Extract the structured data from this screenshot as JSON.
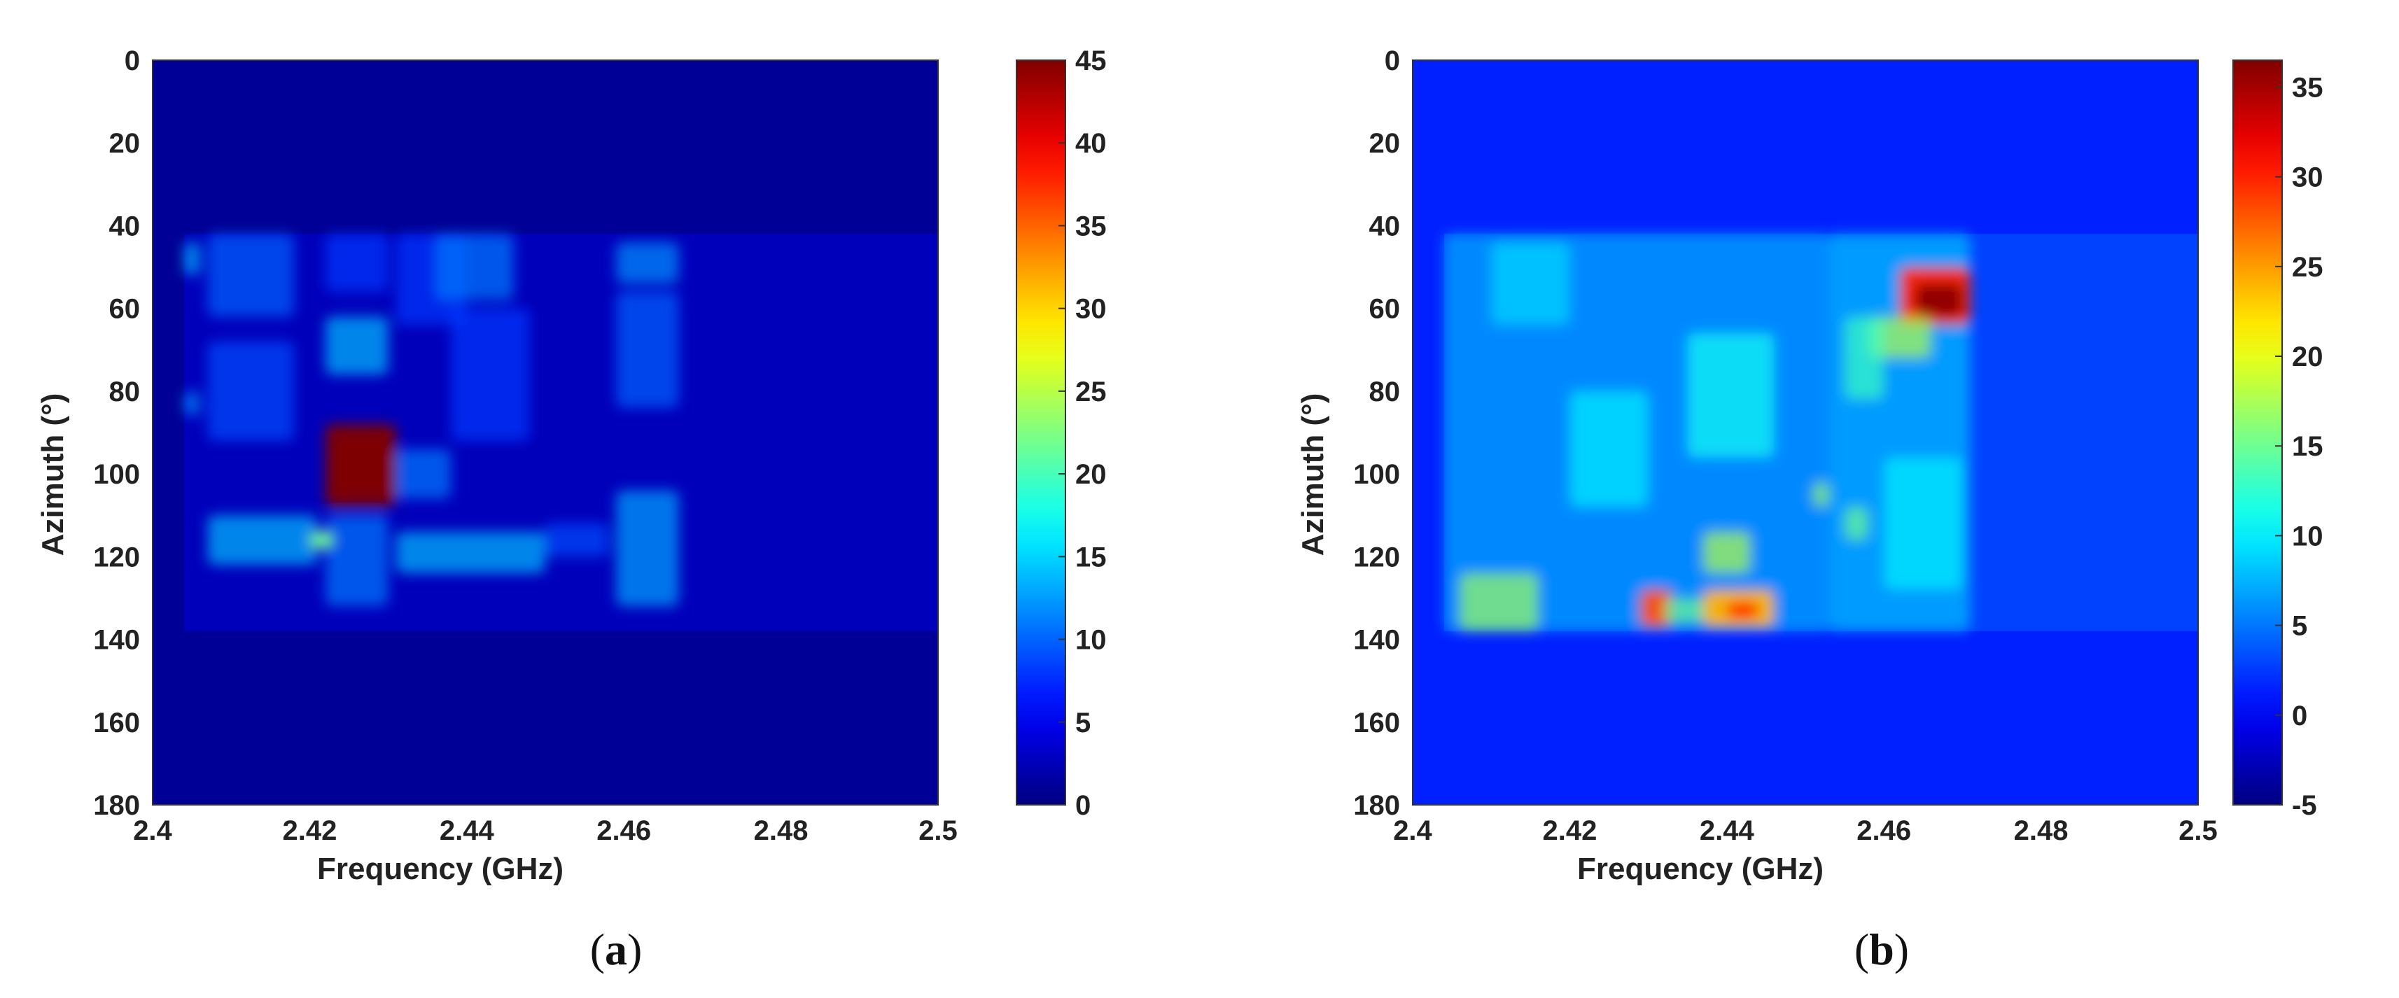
{
  "chart_data": [
    {
      "type": "heatmap",
      "caption_letter": "a",
      "xlabel": "Frequency (GHz)",
      "ylabel": "Azimuth (°)",
      "xlim": [
        2.4,
        2.5
      ],
      "ylim": [
        0,
        180
      ],
      "y_reversed": true,
      "xticks": [
        "2.4",
        "2.42",
        "2.44",
        "2.46",
        "2.48",
        "2.5"
      ],
      "yticks": [
        "0",
        "20",
        "40",
        "60",
        "80",
        "100",
        "120",
        "140",
        "160",
        "180"
      ],
      "colorbar": {
        "min": 0,
        "max": 45,
        "ticks": [
          "0",
          "5",
          "10",
          "15",
          "20",
          "25",
          "30",
          "35",
          "40",
          "45"
        ]
      },
      "background": 1,
      "active_band": {
        "x": [
          2.404,
          2.5
        ],
        "y": [
          42,
          138
        ],
        "value": 4
      },
      "blobs": [
        {
          "x": [
            2.422,
            2.431
          ],
          "y": [
            88,
            108
          ],
          "value": 45
        },
        {
          "x": [
            2.423,
            2.43
          ],
          "y": [
            92,
            104
          ],
          "value": 45
        },
        {
          "x": [
            2.404,
            2.406
          ],
          "y": [
            44,
            52
          ],
          "value": 14
        },
        {
          "x": [
            2.404,
            2.406
          ],
          "y": [
            80,
            86
          ],
          "value": 12
        },
        {
          "x": [
            2.407,
            2.418
          ],
          "y": [
            42,
            62
          ],
          "value": 10
        },
        {
          "x": [
            2.407,
            2.418
          ],
          "y": [
            68,
            92
          ],
          "value": 9
        },
        {
          "x": [
            2.407,
            2.421
          ],
          "y": [
            110,
            122
          ],
          "value": 14
        },
        {
          "x": [
            2.422,
            2.43
          ],
          "y": [
            42,
            56
          ],
          "value": 8
        },
        {
          "x": [
            2.422,
            2.43
          ],
          "y": [
            62,
            76
          ],
          "value": 14
        },
        {
          "x": [
            2.422,
            2.43
          ],
          "y": [
            110,
            132
          ],
          "value": 11
        },
        {
          "x": [
            2.431,
            2.44
          ],
          "y": [
            42,
            64
          ],
          "value": 8
        },
        {
          "x": [
            2.431,
            2.438
          ],
          "y": [
            94,
            106
          ],
          "value": 11
        },
        {
          "x": [
            2.431,
            2.45
          ],
          "y": [
            114,
            124
          ],
          "value": 14
        },
        {
          "x": [
            2.436,
            2.446
          ],
          "y": [
            42,
            58
          ],
          "value": 11
        },
        {
          "x": [
            2.438,
            2.448
          ],
          "y": [
            60,
            92
          ],
          "value": 8
        },
        {
          "x": [
            2.45,
            2.458
          ],
          "y": [
            112,
            120
          ],
          "value": 9
        },
        {
          "x": [
            2.459,
            2.467
          ],
          "y": [
            44,
            54
          ],
          "value": 12
        },
        {
          "x": [
            2.459,
            2.467
          ],
          "y": [
            56,
            84
          ],
          "value": 10
        },
        {
          "x": [
            2.459,
            2.467
          ],
          "y": [
            104,
            132
          ],
          "value": 13
        },
        {
          "x": [
            2.42,
            2.423
          ],
          "y": [
            114,
            118
          ],
          "value": 22
        }
      ]
    },
    {
      "type": "heatmap",
      "caption_letter": "b",
      "xlabel": "Frequency (GHz)",
      "ylabel": "Azimuth (°)",
      "xlim": [
        2.4,
        2.5
      ],
      "ylim": [
        0,
        180
      ],
      "y_reversed": true,
      "xticks": [
        "2.4",
        "2.42",
        "2.44",
        "2.46",
        "2.48",
        "2.5"
      ],
      "yticks": [
        "0",
        "20",
        "40",
        "60",
        "80",
        "100",
        "120",
        "140",
        "160",
        "180"
      ],
      "colorbar": {
        "min": -5,
        "max": 36.5,
        "ticks": [
          "-5",
          "0",
          "5",
          "10",
          "15",
          "20",
          "25",
          "30",
          "35"
        ]
      },
      "background": 1.5,
      "active_band": {
        "x": [
          2.404,
          2.5
        ],
        "y": [
          42,
          138
        ],
        "value": 4
      },
      "blobs": [
        {
          "x": [
            2.404,
            2.453
          ],
          "y": [
            42,
            138
          ],
          "value": 7
        },
        {
          "x": [
            2.453,
            2.471
          ],
          "y": [
            42,
            138
          ],
          "value": 8
        },
        {
          "x": [
            2.462,
            2.471
          ],
          "y": [
            50,
            64
          ],
          "value": 30
        },
        {
          "x": [
            2.464,
            2.47
          ],
          "y": [
            54,
            62
          ],
          "value": 36
        },
        {
          "x": [
            2.458,
            2.466
          ],
          "y": [
            62,
            72
          ],
          "value": 18
        },
        {
          "x": [
            2.455,
            2.46
          ],
          "y": [
            62,
            82
          ],
          "value": 13
        },
        {
          "x": [
            2.406,
            2.416
          ],
          "y": [
            124,
            138
          ],
          "value": 17
        },
        {
          "x": [
            2.429,
            2.433
          ],
          "y": [
            128,
            137
          ],
          "value": 28
        },
        {
          "x": [
            2.437,
            2.446
          ],
          "y": [
            128,
            137
          ],
          "value": 24
        },
        {
          "x": [
            2.44,
            2.444
          ],
          "y": [
            131,
            135
          ],
          "value": 30
        },
        {
          "x": [
            2.432,
            2.437
          ],
          "y": [
            130,
            136
          ],
          "value": 15
        },
        {
          "x": [
            2.437,
            2.443
          ],
          "y": [
            114,
            124
          ],
          "value": 18
        },
        {
          "x": [
            2.435,
            2.446
          ],
          "y": [
            66,
            96
          ],
          "value": 11
        },
        {
          "x": [
            2.41,
            2.42
          ],
          "y": [
            44,
            64
          ],
          "value": 9
        },
        {
          "x": [
            2.42,
            2.43
          ],
          "y": [
            80,
            108
          ],
          "value": 10
        },
        {
          "x": [
            2.451,
            2.453
          ],
          "y": [
            102,
            108
          ],
          "value": 17
        },
        {
          "x": [
            2.455,
            2.458
          ],
          "y": [
            108,
            116
          ],
          "value": 15
        },
        {
          "x": [
            2.46,
            2.47
          ],
          "y": [
            96,
            128
          ],
          "value": 10
        }
      ]
    }
  ]
}
